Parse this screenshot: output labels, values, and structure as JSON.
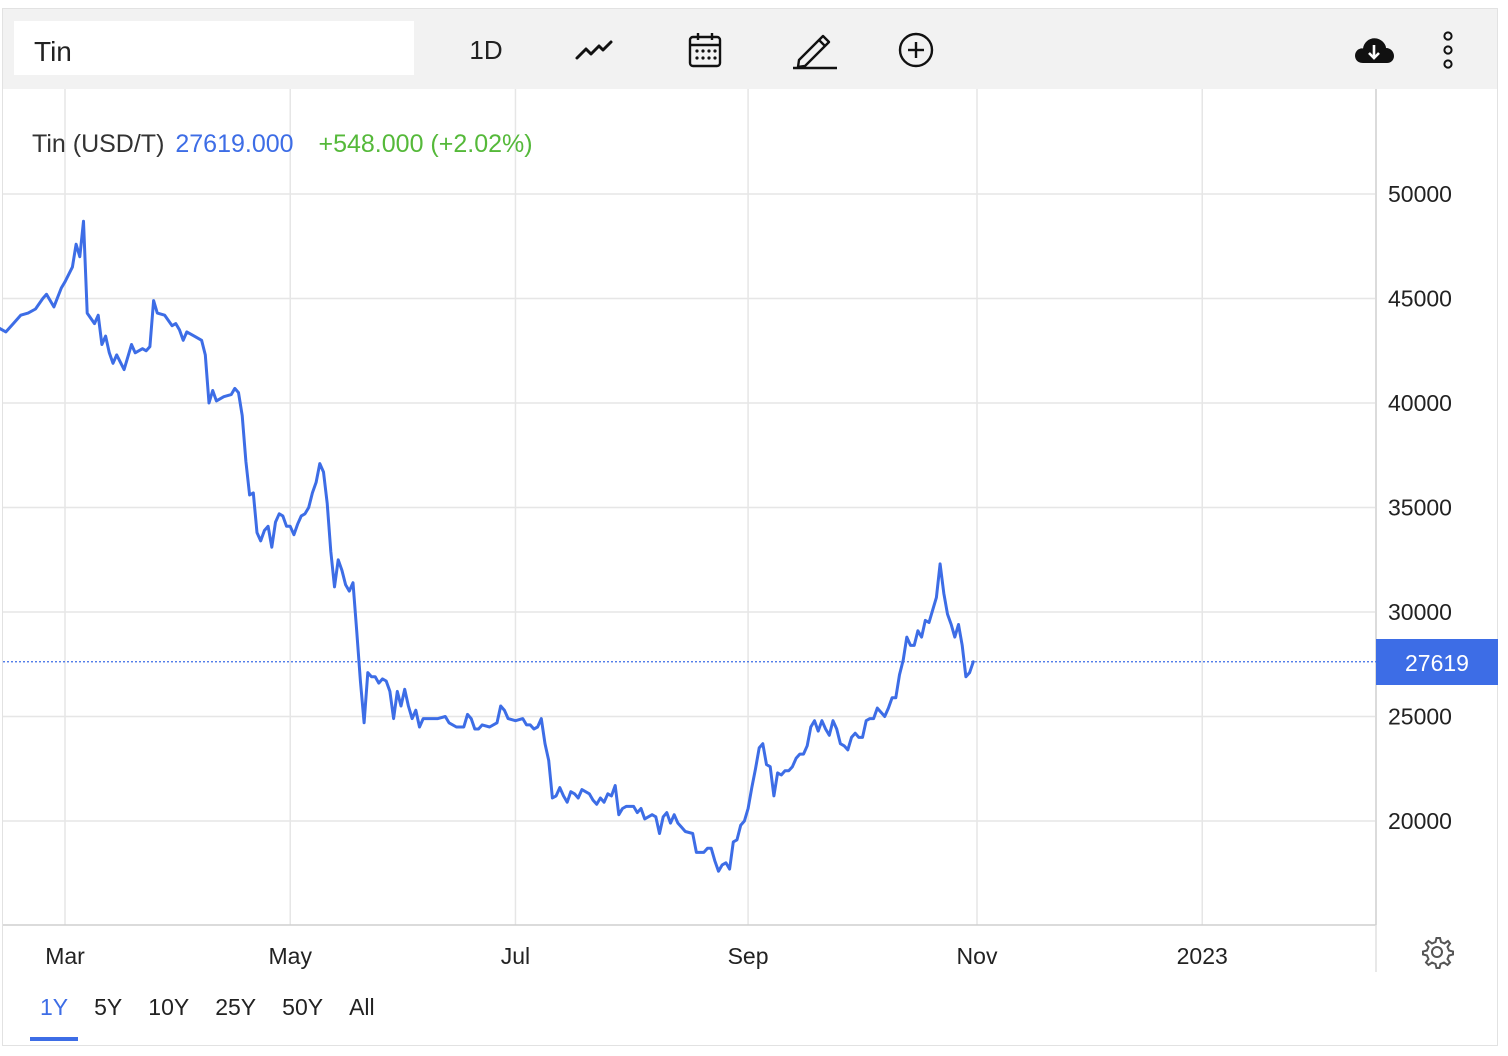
{
  "toolbar": {
    "search_value": "Tin",
    "interval_label": "1D",
    "icons": [
      "line-chart-icon",
      "calendar-icon",
      "pencil-icon",
      "add-circle-icon",
      "cloud-download-icon",
      "more-vertical-icon"
    ]
  },
  "header": {
    "name": "Tin (USD/T)",
    "value": "27619.000",
    "change": "+548.000 (+2.02%)"
  },
  "price_tag": "27619",
  "ranges": [
    "1Y",
    "5Y",
    "10Y",
    "25Y",
    "50Y",
    "All"
  ],
  "active_range": "1Y",
  "colors": {
    "line": "#3d6de6",
    "positive": "#55b93a",
    "grid": "#e6e6e6"
  },
  "chart_data": {
    "type": "line",
    "xlabel": "",
    "ylabel": "",
    "ylim": [
      15000,
      52000
    ],
    "y_ticks": [
      50000,
      45000,
      40000,
      35000,
      30000,
      25000,
      20000
    ],
    "y_tick_labels": [
      "50000",
      "45000",
      "40000",
      "35000",
      "30000",
      "25000",
      "20000"
    ],
    "x_ticks": [
      {
        "label": "Mar",
        "t": 30
      },
      {
        "label": "May",
        "t": 91
      },
      {
        "label": "Jul",
        "t": 152
      },
      {
        "label": "Sep",
        "t": 215
      },
      {
        "label": "Nov",
        "t": 277
      },
      {
        "label": "2023",
        "t": 338
      }
    ],
    "last_value": 27619,
    "grid": true,
    "series": [
      {
        "values": [
          [
            12,
            43600
          ],
          [
            14,
            43400
          ],
          [
            16,
            43800
          ],
          [
            18,
            44200
          ],
          [
            20,
            44300
          ],
          [
            22,
            44500
          ],
          [
            24,
            45000
          ],
          [
            25,
            45200
          ],
          [
            27,
            44600
          ],
          [
            29,
            45500
          ],
          [
            30,
            45800
          ],
          [
            32,
            46500
          ],
          [
            33,
            47600
          ],
          [
            34,
            47000
          ],
          [
            35,
            48700
          ],
          [
            36,
            44300
          ],
          [
            38,
            43800
          ],
          [
            39,
            44200
          ],
          [
            40,
            42800
          ],
          [
            41,
            43200
          ],
          [
            42,
            42400
          ],
          [
            43,
            41900
          ],
          [
            44,
            42300
          ],
          [
            46,
            41600
          ],
          [
            48,
            42800
          ],
          [
            49,
            42400
          ],
          [
            51,
            42600
          ],
          [
            52,
            42500
          ],
          [
            53,
            42700
          ],
          [
            54,
            44900
          ],
          [
            55,
            44300
          ],
          [
            57,
            44200
          ],
          [
            59,
            43700
          ],
          [
            60,
            43800
          ],
          [
            61,
            43500
          ],
          [
            62,
            43000
          ],
          [
            63,
            43400
          ],
          [
            65,
            43200
          ],
          [
            67,
            43000
          ],
          [
            68,
            42300
          ],
          [
            69,
            40000
          ],
          [
            70,
            40600
          ],
          [
            71,
            40100
          ],
          [
            73,
            40300
          ],
          [
            75,
            40400
          ],
          [
            76,
            40700
          ],
          [
            77,
            40500
          ],
          [
            78,
            39400
          ],
          [
            79,
            37200
          ],
          [
            80,
            35600
          ],
          [
            81,
            35700
          ],
          [
            82,
            33800
          ],
          [
            83,
            33400
          ],
          [
            84,
            33900
          ],
          [
            85,
            34100
          ],
          [
            86,
            33100
          ],
          [
            87,
            34300
          ],
          [
            88,
            34700
          ],
          [
            89,
            34600
          ],
          [
            90,
            34100
          ],
          [
            91,
            34100
          ],
          [
            92,
            33700
          ],
          [
            93,
            34200
          ],
          [
            94,
            34600
          ],
          [
            95,
            34700
          ],
          [
            96,
            35000
          ],
          [
            97,
            35700
          ],
          [
            98,
            36200
          ],
          [
            99,
            37100
          ],
          [
            100,
            36700
          ],
          [
            101,
            35200
          ],
          [
            102,
            32900
          ],
          [
            103,
            31200
          ],
          [
            104,
            32500
          ],
          [
            105,
            32000
          ],
          [
            106,
            31300
          ],
          [
            107,
            31000
          ],
          [
            108,
            31400
          ],
          [
            109,
            29100
          ],
          [
            110,
            26700
          ],
          [
            111,
            24700
          ],
          [
            112,
            27100
          ],
          [
            113,
            26900
          ],
          [
            114,
            26900
          ],
          [
            115,
            26600
          ],
          [
            116,
            26800
          ],
          [
            117,
            26700
          ],
          [
            118,
            26200
          ],
          [
            119,
            24900
          ],
          [
            120,
            26200
          ],
          [
            121,
            25500
          ],
          [
            122,
            26300
          ],
          [
            123,
            25500
          ],
          [
            124,
            24900
          ],
          [
            125,
            25300
          ],
          [
            126,
            24500
          ],
          [
            127,
            24900
          ],
          [
            129,
            24900
          ],
          [
            131,
            24900
          ],
          [
            133,
            25000
          ],
          [
            134,
            24700
          ],
          [
            136,
            24500
          ],
          [
            138,
            24500
          ],
          [
            139,
            25100
          ],
          [
            140,
            24900
          ],
          [
            141,
            24400
          ],
          [
            142,
            24400
          ],
          [
            143,
            24600
          ],
          [
            145,
            24500
          ],
          [
            147,
            24700
          ],
          [
            148,
            25500
          ],
          [
            149,
            25300
          ],
          [
            150,
            24900
          ],
          [
            152,
            24800
          ],
          [
            154,
            24900
          ],
          [
            155,
            24600
          ],
          [
            156,
            24600
          ],
          [
            157,
            24400
          ],
          [
            158,
            24500
          ],
          [
            159,
            24900
          ],
          [
            160,
            23700
          ],
          [
            161,
            22900
          ],
          [
            162,
            21100
          ],
          [
            163,
            21200
          ],
          [
            164,
            21600
          ],
          [
            165,
            21200
          ],
          [
            166,
            20900
          ],
          [
            167,
            21400
          ],
          [
            168,
            21300
          ],
          [
            169,
            21100
          ],
          [
            170,
            21500
          ],
          [
            171,
            21400
          ],
          [
            172,
            21300
          ],
          [
            173,
            21000
          ],
          [
            174,
            20800
          ],
          [
            175,
            21100
          ],
          [
            176,
            20900
          ],
          [
            177,
            21300
          ],
          [
            178,
            21200
          ],
          [
            179,
            21700
          ],
          [
            180,
            20300
          ],
          [
            181,
            20600
          ],
          [
            182,
            20700
          ],
          [
            184,
            20700
          ],
          [
            185,
            20400
          ],
          [
            186,
            20600
          ],
          [
            187,
            20100
          ],
          [
            188,
            20200
          ],
          [
            189,
            20300
          ],
          [
            190,
            20200
          ],
          [
            191,
            19400
          ],
          [
            192,
            20200
          ],
          [
            193,
            20400
          ],
          [
            194,
            19900
          ],
          [
            195,
            20300
          ],
          [
            196,
            19900
          ],
          [
            197,
            19700
          ],
          [
            198,
            19500
          ],
          [
            200,
            19400
          ],
          [
            201,
            18500
          ],
          [
            203,
            18500
          ],
          [
            204,
            18700
          ],
          [
            205,
            18700
          ],
          [
            206,
            18100
          ],
          [
            207,
            17600
          ],
          [
            208,
            17900
          ],
          [
            209,
            18000
          ],
          [
            210,
            17700
          ],
          [
            211,
            19000
          ],
          [
            212,
            19100
          ],
          [
            213,
            19800
          ],
          [
            214,
            20000
          ],
          [
            215,
            20600
          ],
          [
            216,
            21600
          ],
          [
            217,
            22500
          ],
          [
            218,
            23500
          ],
          [
            219,
            23700
          ],
          [
            220,
            22700
          ],
          [
            221,
            22600
          ],
          [
            222,
            21200
          ],
          [
            223,
            22300
          ],
          [
            224,
            22200
          ],
          [
            225,
            22400
          ],
          [
            226,
            22400
          ],
          [
            227,
            22600
          ],
          [
            228,
            23000
          ],
          [
            229,
            23200
          ],
          [
            230,
            23200
          ],
          [
            231,
            23600
          ],
          [
            232,
            24500
          ],
          [
            233,
            24800
          ],
          [
            234,
            24300
          ],
          [
            235,
            24800
          ],
          [
            236,
            24400
          ],
          [
            237,
            24100
          ],
          [
            238,
            24800
          ],
          [
            239,
            24400
          ],
          [
            240,
            23700
          ],
          [
            241,
            23600
          ],
          [
            242,
            23400
          ],
          [
            243,
            24000
          ],
          [
            244,
            24200
          ],
          [
            245,
            24000
          ],
          [
            246,
            24000
          ],
          [
            247,
            24800
          ],
          [
            248,
            24900
          ],
          [
            249,
            24900
          ],
          [
            250,
            25400
          ],
          [
            251,
            25200
          ],
          [
            252,
            25000
          ],
          [
            253,
            25400
          ],
          [
            254,
            25900
          ],
          [
            255,
            25900
          ],
          [
            256,
            27000
          ],
          [
            257,
            27700
          ],
          [
            258,
            28800
          ],
          [
            259,
            28400
          ],
          [
            260,
            28400
          ],
          [
            261,
            29100
          ],
          [
            262,
            28800
          ],
          [
            263,
            29600
          ],
          [
            264,
            29500
          ],
          [
            265,
            30100
          ],
          [
            266,
            30700
          ],
          [
            267,
            32300
          ],
          [
            268,
            30900
          ],
          [
            269,
            29900
          ],
          [
            270,
            29400
          ],
          [
            271,
            28800
          ],
          [
            272,
            29400
          ],
          [
            273,
            28400
          ],
          [
            274,
            26900
          ],
          [
            275,
            27100
          ],
          [
            276,
            27619
          ]
        ]
      }
    ]
  }
}
